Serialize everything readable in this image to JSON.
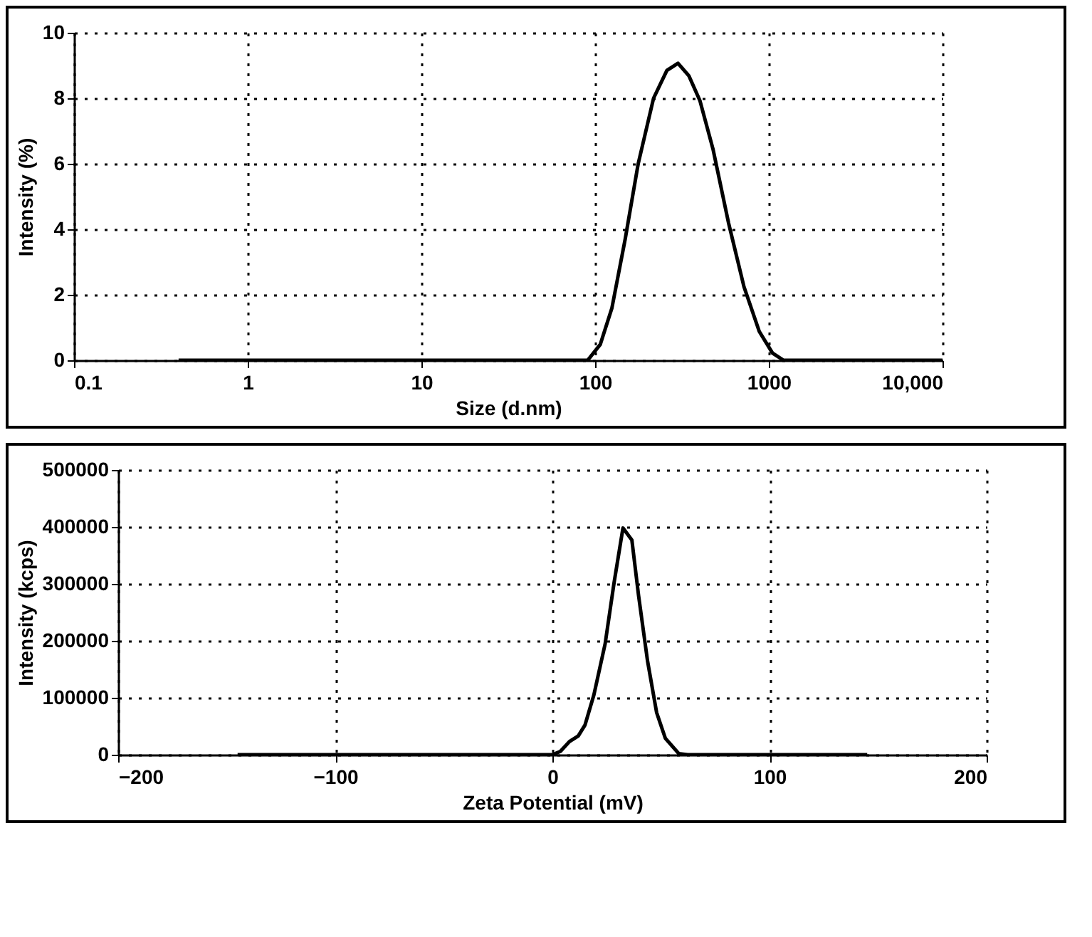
{
  "chart_data": [
    {
      "type": "line",
      "xlabel": "Size (d.nm)",
      "ylabel": "Intensity (%)",
      "log": "x",
      "grid": true,
      "xlim": [
        0.1,
        10000
      ],
      "xticks": [
        0.1,
        1,
        10,
        100,
        1000,
        {
          "value": 10000,
          "label": "10,000"
        }
      ],
      "ylim": [
        0,
        10
      ],
      "yticks": [
        0,
        2,
        4,
        6,
        8,
        10
      ],
      "series": [
        {
          "color": "#000000",
          "x": [
            0.4,
            90.6,
            107,
            125,
            149,
            177,
            217,
            259,
            300,
            347,
            401,
            478,
            586,
            719,
            881,
            1050,
            1216,
            10000
          ],
          "values": [
            0,
            0,
            0.48,
            1.6,
            3.7,
            6.0,
            8.0,
            8.85,
            9.07,
            8.68,
            7.93,
            6.43,
            4.2,
            2.25,
            0.88,
            0.22,
            0,
            0
          ]
        }
      ]
    },
    {
      "type": "line",
      "xlabel": "Zeta Potential (mV)",
      "ylabel": "Intensity (kcps)",
      "grid": true,
      "xlim": [
        -200,
        200
      ],
      "xticks": [
        {
          "value": -200,
          "label": "−200"
        },
        {
          "value": -100,
          "label": "−100"
        },
        0,
        100,
        200
      ],
      "ylim": [
        0,
        500000
      ],
      "yticks": [
        0,
        100000,
        200000,
        300000,
        400000,
        500000
      ],
      "series": [
        {
          "color": "#000000",
          "x": [
            -145,
            0,
            3.7,
            7.8,
            11.9,
            15,
            19.1,
            24.3,
            28.4,
            32.5,
            36.6,
            39.7,
            43.8,
            48,
            52,
            58.2,
            62.3,
            145
          ],
          "values": [
            0,
            0,
            6000,
            23000,
            33000,
            52000,
            105000,
            195000,
            302000,
            398000,
            377000,
            279000,
            165000,
            74000,
            29000,
            2000,
            0,
            0
          ]
        }
      ]
    }
  ]
}
